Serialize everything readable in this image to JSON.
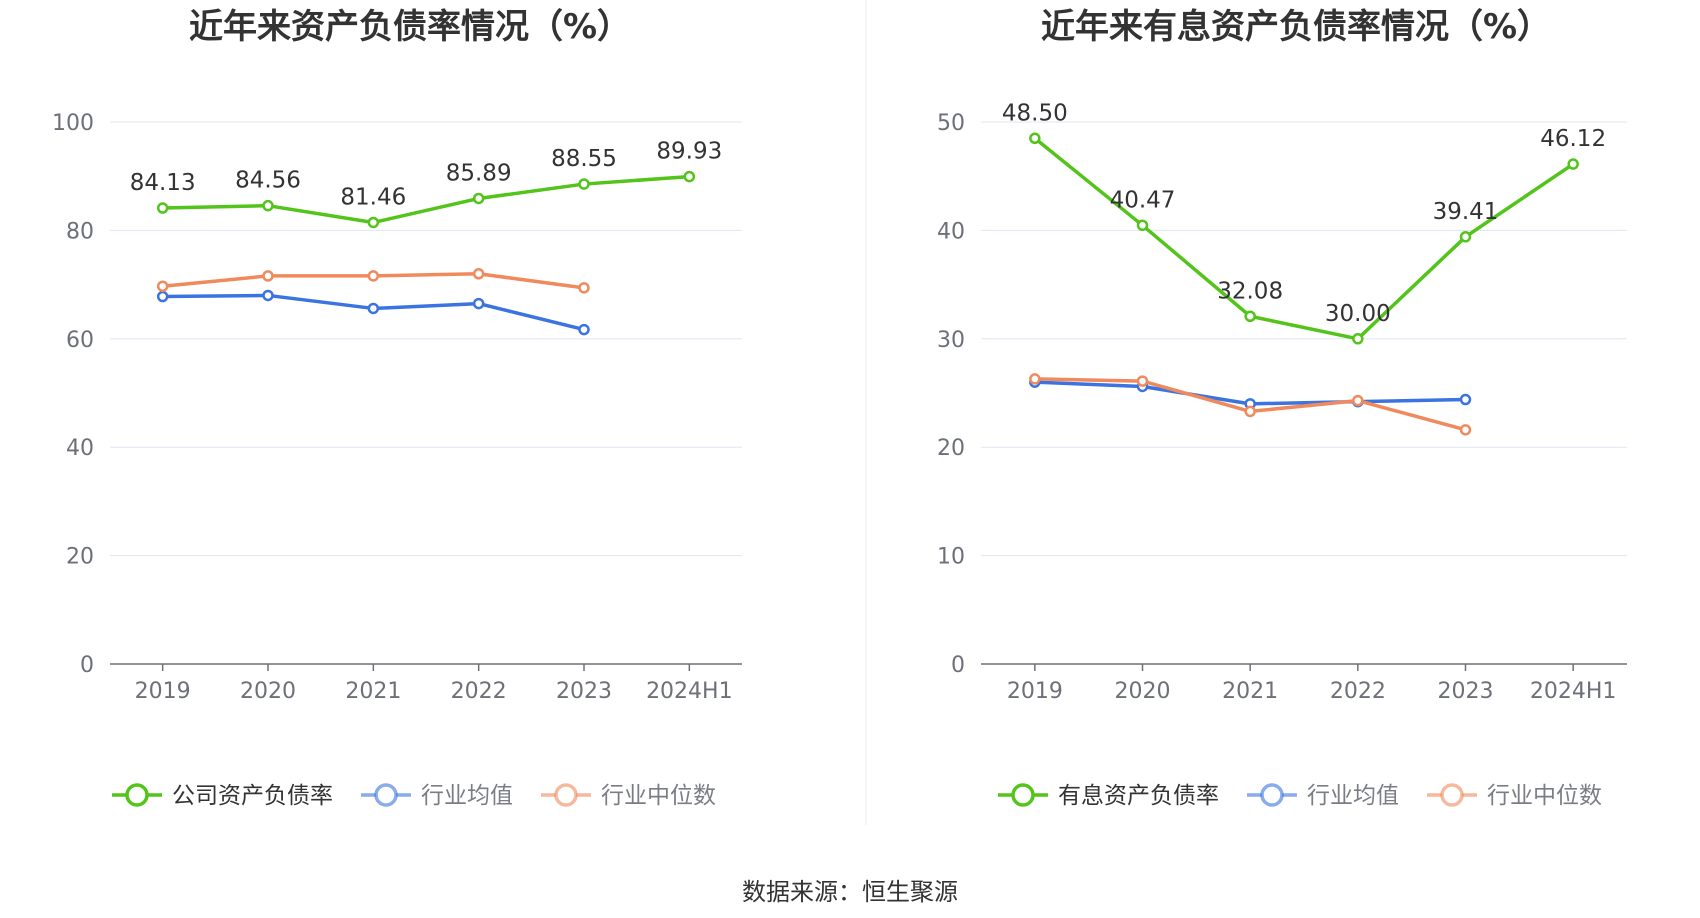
{
  "source": "数据来源：恒生聚源",
  "colors": {
    "company": "#52c41a",
    "industry_avg": "#3b74e0",
    "industry_median": "#f08a5d",
    "grid": "#dfe6f3",
    "axis": "#6e7079"
  },
  "chart_data": [
    {
      "type": "line",
      "title": "近年来资产负债率情况（%）",
      "categories": [
        "2019",
        "2020",
        "2021",
        "2022",
        "2023",
        "2024H1"
      ],
      "ylim": [
        0,
        100
      ],
      "yticks": [
        0,
        20,
        40,
        60,
        80,
        100
      ],
      "grid": true,
      "legend_position": "bottom",
      "series": [
        {
          "name": "公司资产负债率",
          "color_key": "company",
          "values": [
            84.13,
            84.56,
            81.46,
            85.89,
            88.55,
            89.93
          ],
          "labels": [
            "84.13",
            "84.56",
            "81.46",
            "85.89",
            "88.55",
            "89.93"
          ]
        },
        {
          "name": "行业均值",
          "color_key": "industry_avg",
          "values": [
            67.8,
            68.0,
            65.6,
            66.5,
            61.7,
            null
          ]
        },
        {
          "name": "行业中位数",
          "color_key": "industry_median",
          "values": [
            69.7,
            71.6,
            71.6,
            72.0,
            69.4,
            null
          ]
        }
      ]
    },
    {
      "type": "line",
      "title": "近年来有息资产负债率情况（%）",
      "categories": [
        "2019",
        "2020",
        "2021",
        "2022",
        "2023",
        "2024H1"
      ],
      "ylim": [
        0,
        50
      ],
      "yticks": [
        0,
        10,
        20,
        30,
        40,
        50
      ],
      "grid": true,
      "legend_position": "bottom",
      "series": [
        {
          "name": "有息资产负债率",
          "color_key": "company",
          "values": [
            48.5,
            40.47,
            32.08,
            30.0,
            39.41,
            46.12
          ],
          "labels": [
            "48.50",
            "40.47",
            "32.08",
            "30.00",
            "39.41",
            "46.12"
          ]
        },
        {
          "name": "行业均值",
          "color_key": "industry_avg",
          "values": [
            26.0,
            25.6,
            24.0,
            24.2,
            24.4,
            null
          ]
        },
        {
          "name": "行业中位数",
          "color_key": "industry_median",
          "values": [
            26.3,
            26.1,
            23.3,
            24.3,
            21.6,
            null
          ]
        }
      ]
    }
  ]
}
